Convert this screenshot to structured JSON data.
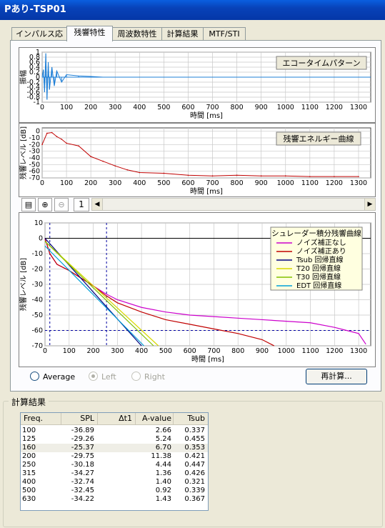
{
  "window": {
    "title": "Pあり-TSP01"
  },
  "tabs": [
    {
      "label": "インパルス応答",
      "active": false
    },
    {
      "label": "残響特性",
      "active": true
    },
    {
      "label": "周波数特性",
      "active": false
    },
    {
      "label": "計算結果",
      "active": false
    },
    {
      "label": "MTF/STI",
      "active": false
    }
  ],
  "colors": {
    "impulse": "#1f7fd6",
    "energy": "#c00000",
    "cursor": "#0000a0"
  },
  "graph1": {
    "ylabel": "振幅",
    "legend": "エコータイムパターン",
    "xlabel": "時間 [ms]",
    "yticks": [
      "1",
      "0.8",
      "0.6",
      "0.4",
      "0.2",
      "0",
      "-0.2",
      "-0.4",
      "-0.6",
      "-0.8",
      "-1"
    ],
    "xticks": [
      "0",
      "100",
      "200",
      "300",
      "400",
      "500",
      "600",
      "700",
      "800",
      "900",
      "1000",
      "1100",
      "1200",
      "1300"
    ]
  },
  "graph2": {
    "ylabel": "残響レベル [dB]",
    "legend": "残響エネルギー曲線",
    "xlabel": "時間 [ms]",
    "yticks": [
      "0",
      "-10",
      "-20",
      "-30",
      "-40",
      "-50",
      "-60",
      "-70"
    ],
    "xticks": [
      "0",
      "100",
      "200",
      "300",
      "400",
      "500",
      "600",
      "700",
      "800",
      "900",
      "1000",
      "1100",
      "1200",
      "1300"
    ]
  },
  "toolbar": {
    "page": "1",
    "icons": [
      "fit-view-icon",
      "zoom-in-icon",
      "zoom-out-icon"
    ]
  },
  "graph3": {
    "ylabel": "残響レベル [dB]",
    "xlabel": "時間 [ms]",
    "yticks": [
      "10",
      "0",
      "-10",
      "-20",
      "-30",
      "-40",
      "-50",
      "-60",
      "-70"
    ],
    "xticks": [
      "0",
      "100",
      "200",
      "300",
      "400",
      "500",
      "600",
      "700",
      "800",
      "900",
      "1000",
      "1100",
      "1200",
      "1300"
    ],
    "legend_title": "シュレーダー積分残響曲線",
    "legend": [
      {
        "label": "ノイズ補正なし",
        "color": "#cc00cc"
      },
      {
        "label": "ノイズ補正あり",
        "color": "#c00000"
      },
      {
        "label": "Tsub 回帰直線",
        "color": "#000080"
      },
      {
        "label": "T20 回帰直線",
        "color": "#d8d800"
      },
      {
        "label": "T30 回帰直線",
        "color": "#80c000"
      },
      {
        "label": "EDT 回帰直線",
        "color": "#00a0d8"
      }
    ]
  },
  "chart_data": [
    {
      "type": "line",
      "title": "エコータイムパターン",
      "xlabel": "時間 [ms]",
      "ylabel": "振幅",
      "xlim": [
        0,
        1350
      ],
      "ylim": [
        -1,
        1
      ],
      "series": [
        {
          "name": "エコータイムパターン",
          "x": [
            0,
            5,
            10,
            15,
            20,
            25,
            30,
            40,
            50,
            60,
            80,
            100,
            150,
            200,
            250,
            1350
          ],
          "y": [
            0,
            0.3,
            -0.6,
            0.95,
            -0.9,
            0.6,
            -0.5,
            0.4,
            -0.35,
            0.25,
            -0.2,
            0.1,
            0.05,
            0.03,
            0,
            0
          ]
        }
      ]
    },
    {
      "type": "line",
      "title": "残響エネルギー曲線",
      "xlabel": "時間 [ms]",
      "ylabel": "残響レベル [dB]",
      "xlim": [
        0,
        1350
      ],
      "ylim": [
        -70,
        5
      ],
      "series": [
        {
          "name": "残響エネルギー曲線",
          "x": [
            0,
            20,
            40,
            60,
            80,
            100,
            150,
            200,
            250,
            300,
            350,
            400,
            500,
            600,
            700,
            800,
            900,
            1000,
            1100,
            1200,
            1300
          ],
          "y": [
            -20,
            -3,
            -2,
            -8,
            -12,
            -18,
            -22,
            -38,
            -45,
            -52,
            -58,
            -62,
            -63,
            -66,
            -67,
            -66,
            -67,
            -67,
            -68,
            -68,
            -68
          ]
        }
      ]
    },
    {
      "type": "line",
      "title": "シュレーダー積分残響曲線",
      "xlabel": "時間 [ms]",
      "ylabel": "残響レベル [dB]",
      "xlim": [
        0,
        1350
      ],
      "ylim": [
        -70,
        10
      ],
      "series": [
        {
          "name": "ノイズ補正なし",
          "x": [
            0,
            20,
            50,
            100,
            150,
            200,
            250,
            300,
            400,
            500,
            600,
            700,
            800,
            900,
            1000,
            1100,
            1200,
            1250,
            1300,
            1330
          ],
          "y": [
            0,
            -10,
            -17,
            -21,
            -26,
            -31,
            -36,
            -40,
            -45,
            -48,
            -50,
            -51,
            -52,
            -53,
            -54,
            -55,
            -58,
            -60,
            -62,
            -69
          ]
        },
        {
          "name": "ノイズ補正あり",
          "x": [
            0,
            20,
            50,
            100,
            150,
            200,
            250,
            300,
            400,
            500,
            600,
            700,
            800,
            900,
            950
          ],
          "y": [
            0,
            -10,
            -17,
            -21,
            -26,
            -31,
            -37,
            -42,
            -48,
            -53,
            -56,
            -59,
            -62,
            -66,
            -70
          ]
        },
        {
          "name": "Tsub 回帰直線",
          "x": [
            0,
            400
          ],
          "y": [
            0,
            -70
          ]
        },
        {
          "name": "T20 回帰直線",
          "x": [
            0,
            470
          ],
          "y": [
            -2,
            -70
          ]
        },
        {
          "name": "T30 回帰直線",
          "x": [
            0,
            450
          ],
          "y": [
            -2,
            -70
          ]
        },
        {
          "name": "EDT 回帰直線",
          "x": [
            0,
            410
          ],
          "y": [
            -5,
            -70
          ]
        }
      ]
    },
    {
      "type": "table",
      "title": "計算結果",
      "columns": [
        "Freq.",
        "SPL",
        "Δt1",
        "A-value",
        "Tsub"
      ],
      "rows": [
        [
          "100",
          "-36.89",
          "",
          "2.66",
          "0.337"
        ],
        [
          "125",
          "-29.26",
          "",
          "5.24",
          "0.455"
        ],
        [
          "160",
          "-25.37",
          "",
          "6.70",
          "0.353"
        ],
        [
          "200",
          "-29.75",
          "",
          "11.38",
          "0.421"
        ],
        [
          "250",
          "-30.18",
          "",
          "4.44",
          "0.447"
        ],
        [
          "315",
          "-34.27",
          "",
          "1.36",
          "0.426"
        ],
        [
          "400",
          "-32.74",
          "",
          "1.40",
          "0.321"
        ],
        [
          "500",
          "-32.45",
          "",
          "0.92",
          "0.339"
        ],
        [
          "630",
          "-34.22",
          "",
          "1.43",
          "0.367"
        ]
      ]
    }
  ],
  "options": {
    "average": "Average",
    "left": "Left",
    "right": "Right",
    "selected": "left"
  },
  "recalc": "再計算...",
  "results": {
    "group_title": "計算結果",
    "columns": [
      "Freq.",
      "SPL",
      "Δt1",
      "A-value",
      "Tsub"
    ],
    "rows": [
      {
        "freq": "100",
        "spl": "-36.89",
        "dt1": "",
        "a": "2.66",
        "tsub": "0.337"
      },
      {
        "freq": "125",
        "spl": "-29.26",
        "dt1": "",
        "a": "5.24",
        "tsub": "0.455"
      },
      {
        "freq": "160",
        "spl": "-25.37",
        "dt1": "",
        "a": "6.70",
        "tsub": "0.353"
      },
      {
        "freq": "200",
        "spl": "-29.75",
        "dt1": "",
        "a": "11.38",
        "tsub": "0.421"
      },
      {
        "freq": "250",
        "spl": "-30.18",
        "dt1": "",
        "a": "4.44",
        "tsub": "0.447"
      },
      {
        "freq": "315",
        "spl": "-34.27",
        "dt1": "",
        "a": "1.36",
        "tsub": "0.426"
      },
      {
        "freq": "400",
        "spl": "-32.74",
        "dt1": "",
        "a": "1.40",
        "tsub": "0.321"
      },
      {
        "freq": "500",
        "spl": "-32.45",
        "dt1": "",
        "a": "0.92",
        "tsub": "0.339"
      },
      {
        "freq": "630",
        "spl": "-34.22",
        "dt1": "",
        "a": "1.43",
        "tsub": "0.367"
      }
    ],
    "selected_index": 2
  }
}
